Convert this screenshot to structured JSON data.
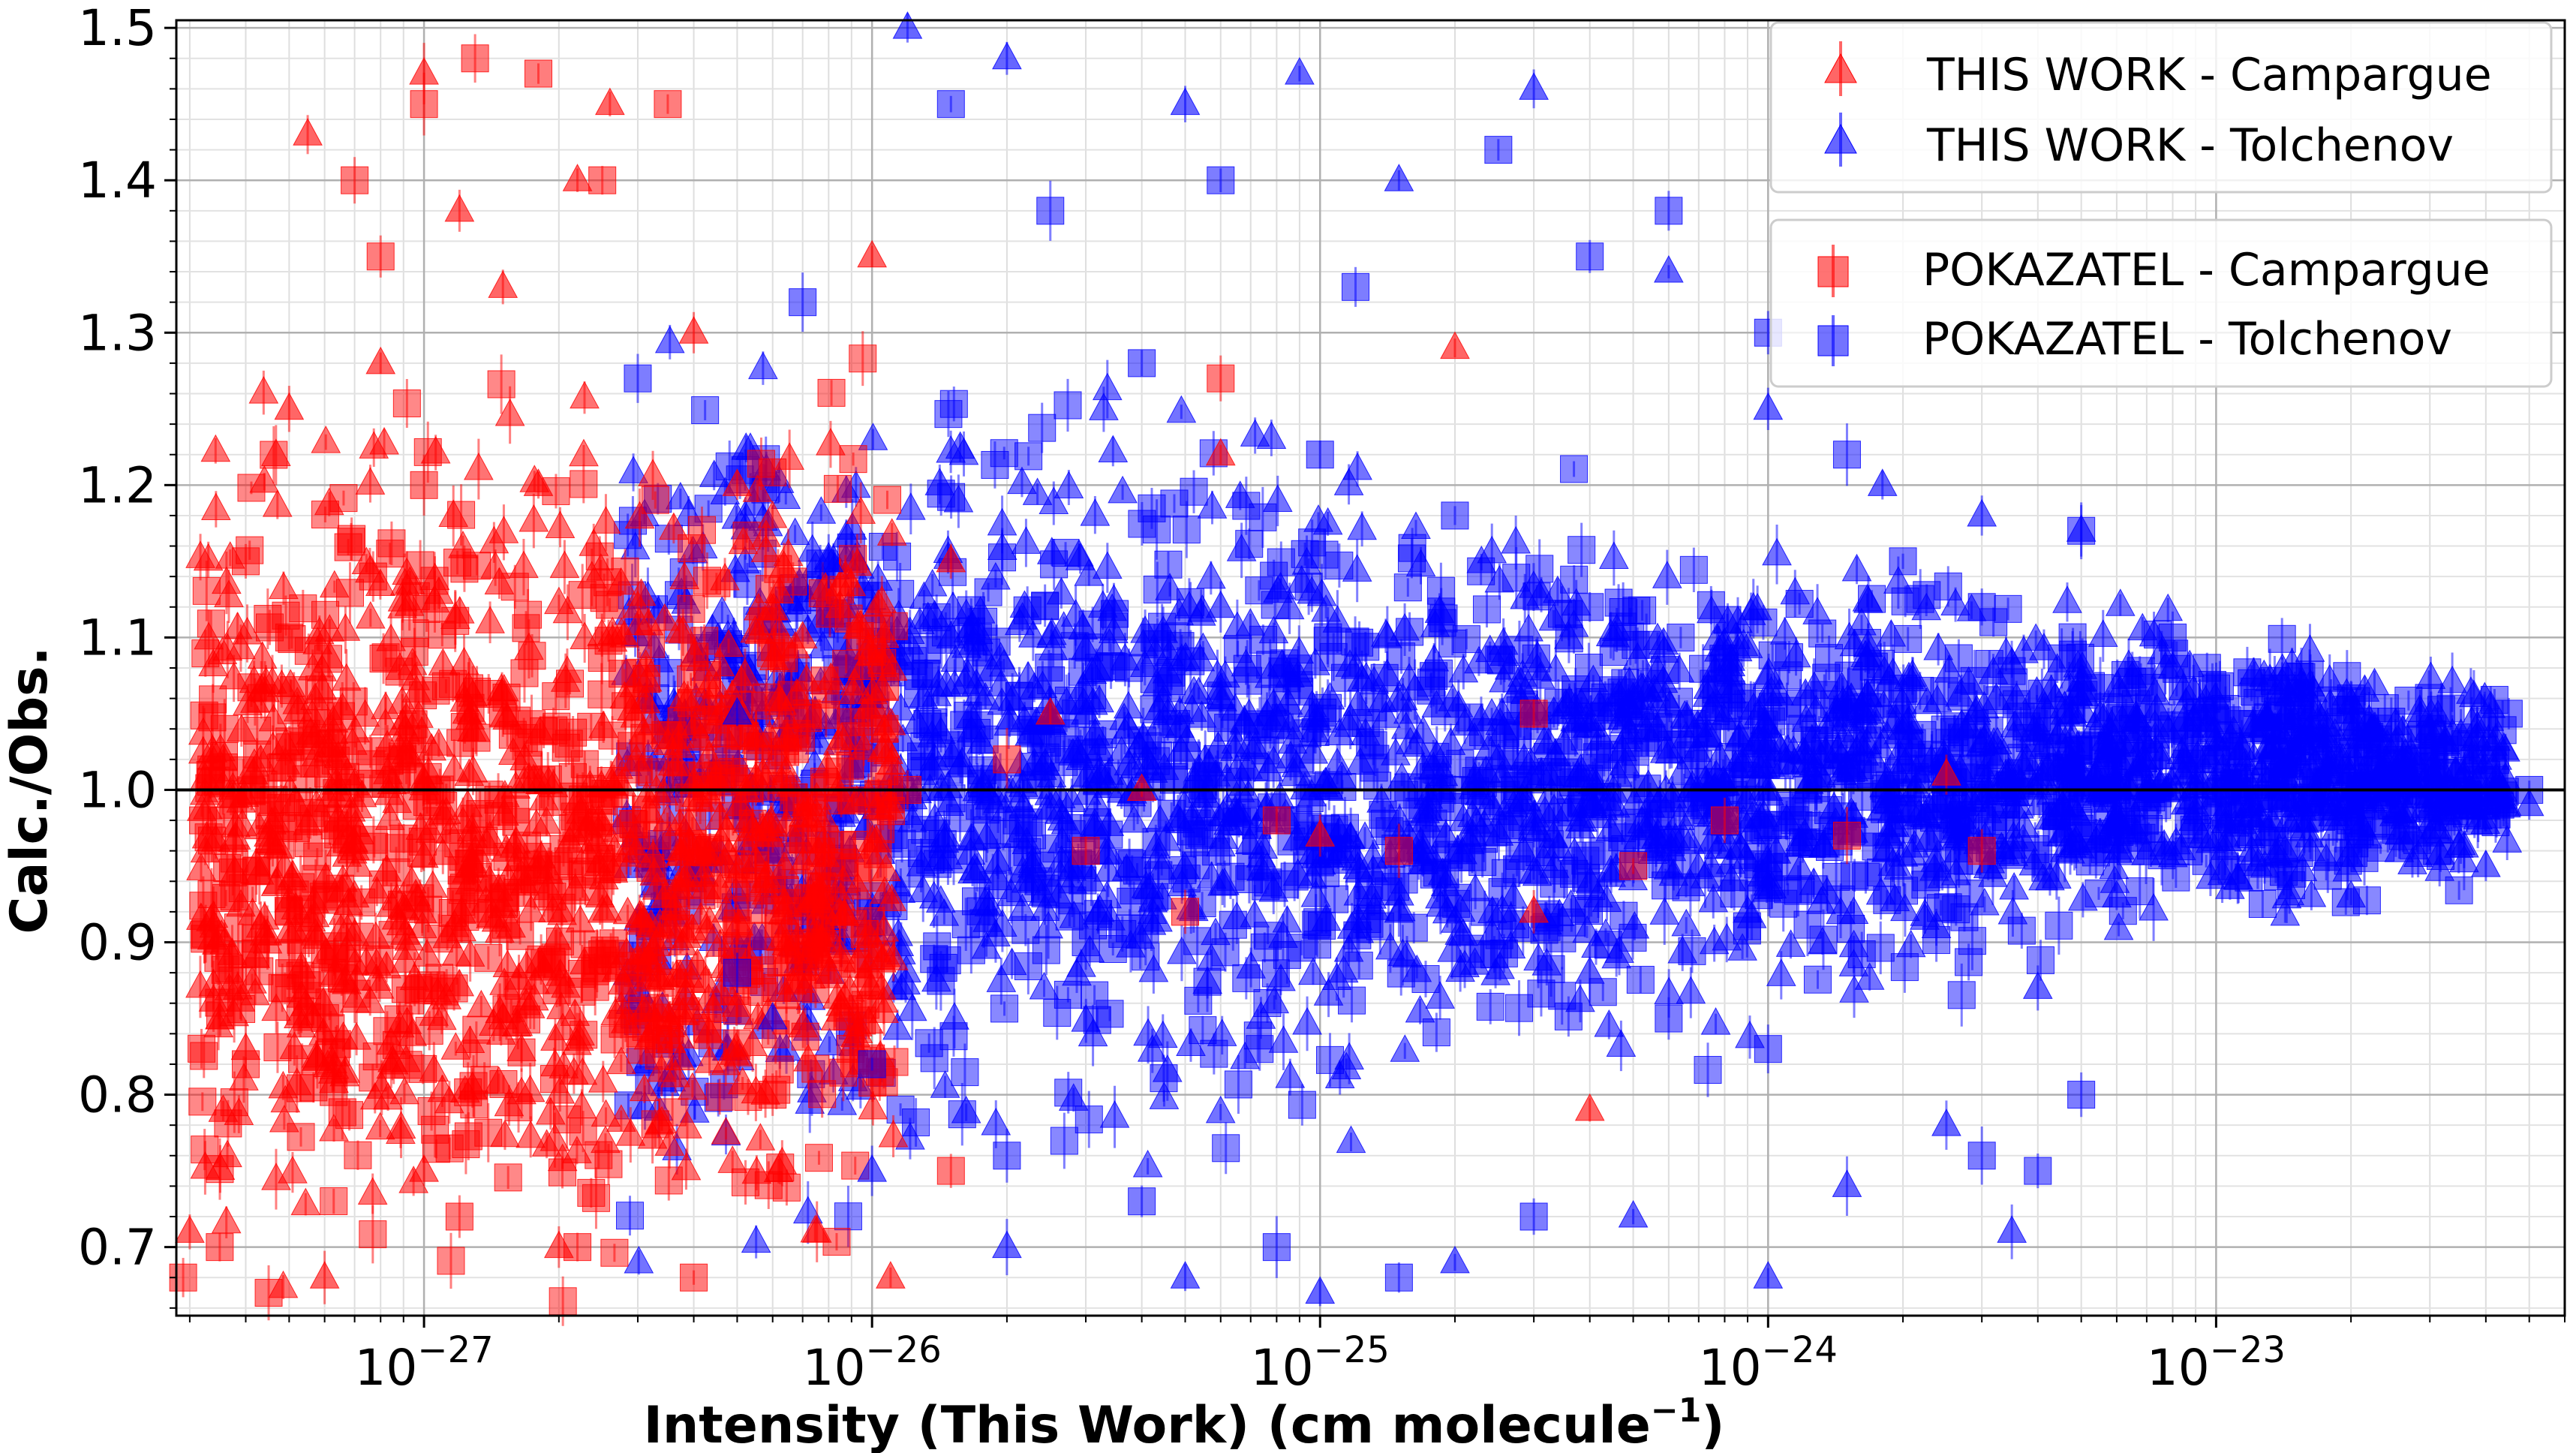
{
  "chart_data": {
    "type": "scatter",
    "xscale": "log",
    "xlim": [
      2.8e-28,
      6e-23
    ],
    "ylim": [
      0.655,
      1.505
    ],
    "xlabel": "Intensity (This Work) (cm molecule",
    "xlabel_sup": "−1",
    "xlabel_close": ")",
    "ylabel": "Calc./Obs.",
    "xticks": [
      {
        "value": 1e-27,
        "base": "10",
        "exp": "−27"
      },
      {
        "value": 1e-26,
        "base": "10",
        "exp": "−26"
      },
      {
        "value": 1e-25,
        "base": "10",
        "exp": "−25"
      },
      {
        "value": 1e-24,
        "base": "10",
        "exp": "−24"
      },
      {
        "value": 1e-23,
        "base": "10",
        "exp": "−23"
      }
    ],
    "yticks": [
      {
        "value": 0.7,
        "label": "0.7"
      },
      {
        "value": 0.8,
        "label": "0.8"
      },
      {
        "value": 0.9,
        "label": "0.9"
      },
      {
        "value": 1.0,
        "label": "1.0"
      },
      {
        "value": 1.1,
        "label": "1.1"
      },
      {
        "value": 1.2,
        "label": "1.2"
      },
      {
        "value": 1.3,
        "label": "1.3"
      },
      {
        "value": 1.4,
        "label": "1.4"
      },
      {
        "value": 1.5,
        "label": "1.5"
      }
    ],
    "reference_line": 1.0,
    "grid": true,
    "legend": {
      "placement": "top-right",
      "groups": [
        [
          {
            "label": "THIS WORK - Campargue",
            "color": "#ff0000",
            "marker": "triangle"
          },
          {
            "label": "THIS WORK - Tolchenov",
            "color": "#0000ff",
            "marker": "triangle"
          }
        ],
        [
          {
            "label": "POKAZATEL - Campargue",
            "color": "#ff0000",
            "marker": "square"
          },
          {
            "label": "POKAZATEL - Tolchenov",
            "color": "#0000ff",
            "marker": "square"
          }
        ]
      ]
    },
    "series": [
      {
        "name": "POKAZATEL - Tolchenov",
        "marker": "square",
        "color": "#0000ff",
        "points": [
          [
            6e-26,
            1.4
          ],
          [
            1.2e-25,
            1.33
          ],
          [
            2.5e-25,
            1.42
          ],
          [
            4e-25,
            1.35
          ],
          [
            6e-25,
            1.38
          ],
          [
            1e-24,
            1.3
          ],
          [
            1.5e-24,
            1.22
          ],
          [
            2e-24,
            1.15
          ],
          [
            3e-24,
            1.12
          ],
          [
            5e-24,
            1.17
          ],
          [
            8e-24,
            1.1
          ],
          [
            1.2e-23,
            1.07
          ],
          [
            2e-23,
            1.06
          ],
          [
            3e-23,
            1.04
          ],
          [
            4.5e-23,
            1.05
          ],
          [
            5e-24,
            0.8
          ],
          [
            4e-24,
            0.75
          ],
          [
            3e-24,
            0.76
          ],
          [
            1e-24,
            0.83
          ],
          [
            6e-25,
            0.85
          ],
          [
            3e-25,
            0.72
          ],
          [
            1.5e-25,
            0.68
          ],
          [
            8e-26,
            0.7
          ],
          [
            4e-26,
            0.73
          ],
          [
            2e-26,
            0.76
          ],
          [
            1e-26,
            0.82
          ],
          [
            5e-27,
            0.88
          ],
          [
            3e-27,
            1.27
          ],
          [
            7e-27,
            1.32
          ],
          [
            1.5e-26,
            1.45
          ],
          [
            2.5e-26,
            1.38
          ],
          [
            4e-26,
            1.28
          ],
          [
            1e-25,
            1.22
          ],
          [
            2e-25,
            1.18
          ],
          [
            3e-24,
            0.98
          ],
          [
            6e-24,
            1.0
          ],
          [
            1e-23,
            1.02
          ],
          [
            2e-23,
            0.98
          ],
          [
            3.5e-23,
            0.99
          ],
          [
            5e-23,
            1.0
          ],
          [
            1.5e-24,
            1.05
          ],
          [
            8e-25,
            1.08
          ],
          [
            4e-25,
            1.12
          ],
          [
            2e-25,
            1.0
          ],
          [
            7e-26,
            0.95
          ],
          [
            3e-26,
            0.9
          ]
        ]
      },
      {
        "name": "THIS WORK - Tolchenov",
        "marker": "triangle",
        "color": "#0000ff",
        "points": [
          [
            1.2e-26,
            1.5
          ],
          [
            2e-26,
            1.48
          ],
          [
            5e-26,
            1.45
          ],
          [
            9e-26,
            1.47
          ],
          [
            1.5e-25,
            1.4
          ],
          [
            3e-25,
            1.46
          ],
          [
            6e-25,
            1.34
          ],
          [
            1e-24,
            1.25
          ],
          [
            1.8e-24,
            1.2
          ],
          [
            3e-24,
            1.18
          ],
          [
            5e-24,
            1.17
          ],
          [
            8e-24,
            1.08
          ],
          [
            1.5e-23,
            1.03
          ],
          [
            3e-23,
            0.97
          ],
          [
            5e-23,
            0.99
          ],
          [
            6e-24,
            0.93
          ],
          [
            4e-24,
            0.87
          ],
          [
            3.5e-24,
            0.71
          ],
          [
            2.5e-24,
            0.78
          ],
          [
            1.5e-24,
            0.74
          ],
          [
            1e-24,
            0.68
          ],
          [
            5e-25,
            0.72
          ],
          [
            2e-25,
            0.69
          ],
          [
            1e-25,
            0.67
          ],
          [
            5e-26,
            0.68
          ],
          [
            2e-26,
            0.7
          ],
          [
            1e-26,
            0.75
          ],
          [
            6e-27,
            0.85
          ],
          [
            5e-27,
            1.05
          ],
          [
            8e-27,
            1.15
          ],
          [
            1.5e-26,
            1.1
          ],
          [
            3e-26,
            1.05
          ],
          [
            6e-26,
            1.12
          ],
          [
            1.2e-25,
            1.08
          ],
          [
            2.5e-25,
            1.02
          ],
          [
            5e-25,
            1.06
          ],
          [
            2e-24,
            1.04
          ],
          [
            7e-24,
            1.0
          ],
          [
            1.2e-23,
            0.96
          ],
          [
            2e-23,
            0.93
          ],
          [
            4e-23,
            0.95
          ],
          [
            9e-25,
            0.92
          ],
          [
            4e-25,
            0.88
          ],
          [
            1.5e-25,
            0.92
          ]
        ]
      },
      {
        "name": "POKAZATEL - Campargue",
        "marker": "square",
        "color": "#ff0000",
        "points": [
          [
            2.9e-28,
            0.68
          ],
          [
            3.5e-28,
            0.7
          ],
          [
            4.5e-28,
            0.67
          ],
          [
            4e-28,
            0.82
          ],
          [
            5e-28,
            0.92
          ],
          [
            4e-28,
            1.15
          ],
          [
            5e-28,
            1.1
          ],
          [
            7e-28,
            1.4
          ],
          [
            8e-28,
            1.35
          ],
          [
            1e-27,
            1.45
          ],
          [
            1.3e-27,
            1.48
          ],
          [
            1.8e-27,
            1.47
          ],
          [
            2.5e-27,
            1.4
          ],
          [
            3.5e-27,
            1.45
          ],
          [
            1e-27,
            1.2
          ],
          [
            1.5e-27,
            1.05
          ],
          [
            2e-27,
            0.95
          ],
          [
            3e-27,
            0.88
          ],
          [
            1.2e-27,
            0.72
          ],
          [
            2.2e-27,
            0.7
          ],
          [
            4e-27,
            0.68
          ],
          [
            6e-27,
            0.8
          ],
          [
            8e-27,
            0.95
          ],
          [
            1.2e-26,
            1.0
          ],
          [
            2e-26,
            1.02
          ],
          [
            3e-26,
            0.96
          ],
          [
            5e-26,
            0.92
          ],
          [
            8e-26,
            0.98
          ],
          [
            1.5e-25,
            0.96
          ],
          [
            3e-25,
            1.05
          ],
          [
            5e-25,
            0.95
          ],
          [
            8e-25,
            0.98
          ],
          [
            1.5e-24,
            0.97
          ],
          [
            3e-24,
            0.96
          ],
          [
            6e-26,
            1.27
          ],
          [
            1.5e-26,
            0.75
          ]
        ]
      },
      {
        "name": "THIS WORK - Campargue",
        "marker": "triangle",
        "color": "#ff0000",
        "points": [
          [
            3e-28,
            0.71
          ],
          [
            3.5e-28,
            0.85
          ],
          [
            4e-28,
            0.83
          ],
          [
            4.5e-28,
            0.97
          ],
          [
            5e-28,
            1.25
          ],
          [
            5.5e-28,
            1.43
          ],
          [
            6e-28,
            0.68
          ],
          [
            7e-28,
            0.93
          ],
          [
            8e-28,
            1.28
          ],
          [
            1e-27,
            1.47
          ],
          [
            1.2e-27,
            1.38
          ],
          [
            1.5e-27,
            1.33
          ],
          [
            1.8e-27,
            1.2
          ],
          [
            2.2e-27,
            1.4
          ],
          [
            2.6e-27,
            1.45
          ],
          [
            3e-27,
            1.12
          ],
          [
            3.5e-27,
            1.03
          ],
          [
            4e-27,
            1.3
          ],
          [
            1e-27,
            0.75
          ],
          [
            1.5e-27,
            0.85
          ],
          [
            2e-27,
            0.7
          ],
          [
            2.5e-27,
            0.92
          ],
          [
            5e-27,
            1.2
          ],
          [
            7e-27,
            1.1
          ],
          [
            1e-26,
            1.35
          ],
          [
            1.5e-26,
            1.15
          ],
          [
            2.5e-26,
            1.05
          ],
          [
            4e-26,
            1.0
          ],
          [
            6e-26,
            1.22
          ],
          [
            1e-25,
            0.97
          ],
          [
            2e-25,
            1.29
          ],
          [
            3e-25,
            0.92
          ],
          [
            4e-25,
            0.79
          ],
          [
            2.5e-24,
            1.01
          ],
          [
            1.1e-26,
            0.68
          ],
          [
            8e-27,
            0.88
          ]
        ]
      }
    ]
  }
}
